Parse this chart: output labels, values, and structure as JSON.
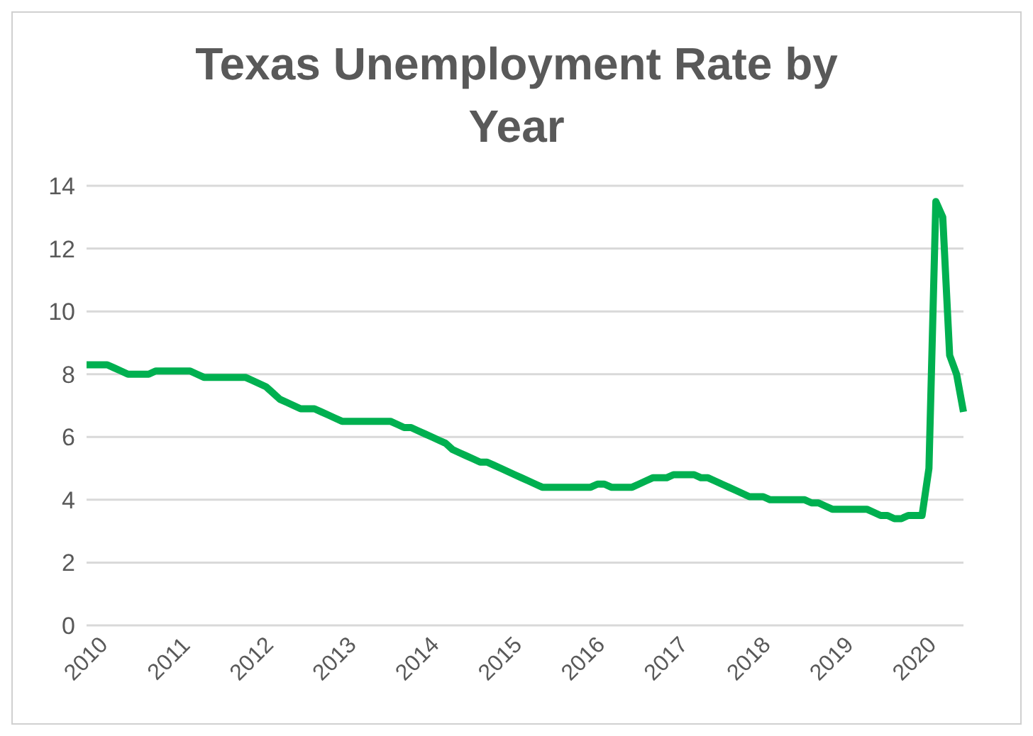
{
  "chart_data": {
    "type": "line",
    "title": "Texas Unemployment Rate by Year",
    "categories": [
      "2010",
      null,
      null,
      null,
      null,
      null,
      null,
      null,
      null,
      null,
      null,
      null,
      "2011",
      null,
      null,
      null,
      null,
      null,
      null,
      null,
      null,
      null,
      null,
      null,
      "2012",
      null,
      null,
      null,
      null,
      null,
      null,
      null,
      null,
      null,
      null,
      null,
      "2013",
      null,
      null,
      null,
      null,
      null,
      null,
      null,
      null,
      null,
      null,
      null,
      "2014",
      null,
      null,
      null,
      null,
      null,
      null,
      null,
      null,
      null,
      null,
      null,
      "2015",
      null,
      null,
      null,
      null,
      null,
      null,
      null,
      null,
      null,
      null,
      null,
      "2016",
      null,
      null,
      null,
      null,
      null,
      null,
      null,
      null,
      null,
      null,
      null,
      "2017",
      null,
      null,
      null,
      null,
      null,
      null,
      null,
      null,
      null,
      null,
      null,
      "2018",
      null,
      null,
      null,
      null,
      null,
      null,
      null,
      null,
      null,
      null,
      null,
      "2019",
      null,
      null,
      null,
      null,
      null,
      null,
      null,
      null,
      null,
      null,
      null,
      "2020",
      null,
      null,
      null,
      null,
      null,
      null,
      null
    ],
    "series": [
      {
        "color": "#00b050",
        "values": [
          8.3,
          8.3,
          8.3,
          8.3,
          8.2,
          8.1,
          8.0,
          8.0,
          8.0,
          8.0,
          8.1,
          8.1,
          8.1,
          8.1,
          8.1,
          8.1,
          8.0,
          7.9,
          7.9,
          7.9,
          7.9,
          7.9,
          7.9,
          7.9,
          7.8,
          7.7,
          7.6,
          7.4,
          7.2,
          7.1,
          7.0,
          6.9,
          6.9,
          6.9,
          6.8,
          6.7,
          6.6,
          6.5,
          6.5,
          6.5,
          6.5,
          6.5,
          6.5,
          6.5,
          6.5,
          6.4,
          6.3,
          6.3,
          6.2,
          6.1,
          6.0,
          5.9,
          5.8,
          5.6,
          5.5,
          5.4,
          5.3,
          5.2,
          5.2,
          5.1,
          5.0,
          4.9,
          4.8,
          4.7,
          4.6,
          4.5,
          4.4,
          4.4,
          4.4,
          4.4,
          4.4,
          4.4,
          4.4,
          4.4,
          4.5,
          4.5,
          4.4,
          4.4,
          4.4,
          4.4,
          4.5,
          4.6,
          4.7,
          4.7,
          4.7,
          4.8,
          4.8,
          4.8,
          4.8,
          4.7,
          4.7,
          4.6,
          4.5,
          4.4,
          4.3,
          4.2,
          4.1,
          4.1,
          4.1,
          4.0,
          4.0,
          4.0,
          4.0,
          4.0,
          4.0,
          3.9,
          3.9,
          3.8,
          3.7,
          3.7,
          3.7,
          3.7,
          3.7,
          3.7,
          3.6,
          3.5,
          3.5,
          3.4,
          3.4,
          3.5,
          3.5,
          3.5,
          5.0,
          13.5,
          13.0,
          8.6,
          8.0,
          6.8
        ]
      }
    ],
    "ylim": [
      0,
      14
    ],
    "yticks": [
      0,
      2,
      4,
      6,
      8,
      10,
      12,
      14
    ],
    "grid": "y",
    "legend": false,
    "marker": "none",
    "line_style": "solid"
  }
}
